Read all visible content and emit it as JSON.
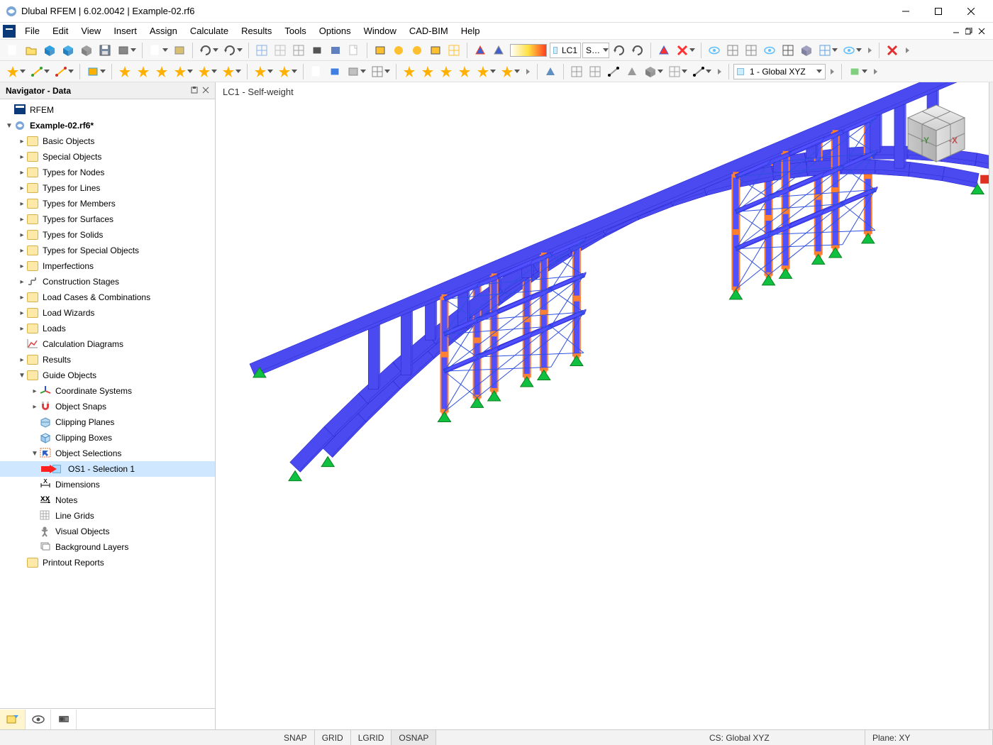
{
  "window": {
    "title": "Dlubal RFEM | 6.02.0042 | Example-02.rf6"
  },
  "menubar": {
    "items": [
      "File",
      "Edit",
      "View",
      "Insert",
      "Assign",
      "Calculate",
      "Results",
      "Tools",
      "Options",
      "Window",
      "CAD-BIM",
      "Help"
    ]
  },
  "toolbar1": {
    "lc_label": "LC1",
    "lc_short": "S…",
    "coord_dropdown": "1 - Global XYZ"
  },
  "navigator": {
    "title": "Navigator - Data",
    "root": "RFEM",
    "file": "Example-02.rf6*",
    "items": [
      "Basic Objects",
      "Special Objects",
      "Types for Nodes",
      "Types for Lines",
      "Types for Members",
      "Types for Surfaces",
      "Types for Solids",
      "Types for Special Objects",
      "Imperfections",
      "Construction Stages",
      "Load Cases & Combinations",
      "Load Wizards",
      "Loads",
      "Calculation Diagrams",
      "Results",
      "Guide Objects"
    ],
    "guide_children": [
      "Coordinate Systems",
      "Object Snaps",
      "Clipping Planes",
      "Clipping Boxes",
      "Object Selections"
    ],
    "selection_item": "OS1 - Selection 1",
    "guide_tail": [
      "Dimensions",
      "Notes",
      "Line Grids",
      "Visual Objects",
      "Background Layers"
    ],
    "printout": "Printout Reports"
  },
  "viewport": {
    "label": "LC1 - Self-weight",
    "colors": {
      "beam": "#4a4af0",
      "beam_dark": "#2a2ad0",
      "column": "#5050ff",
      "column_h": "#ff8030",
      "brace": "#3050e0",
      "support": "#10c040",
      "endcap": "#e03020"
    }
  },
  "statusbar": {
    "snap": "SNAP",
    "grid": "GRID",
    "lgrid": "LGRID",
    "osnap": "OSNAP",
    "cs": "CS: Global XYZ",
    "plane": "Plane: XY"
  }
}
